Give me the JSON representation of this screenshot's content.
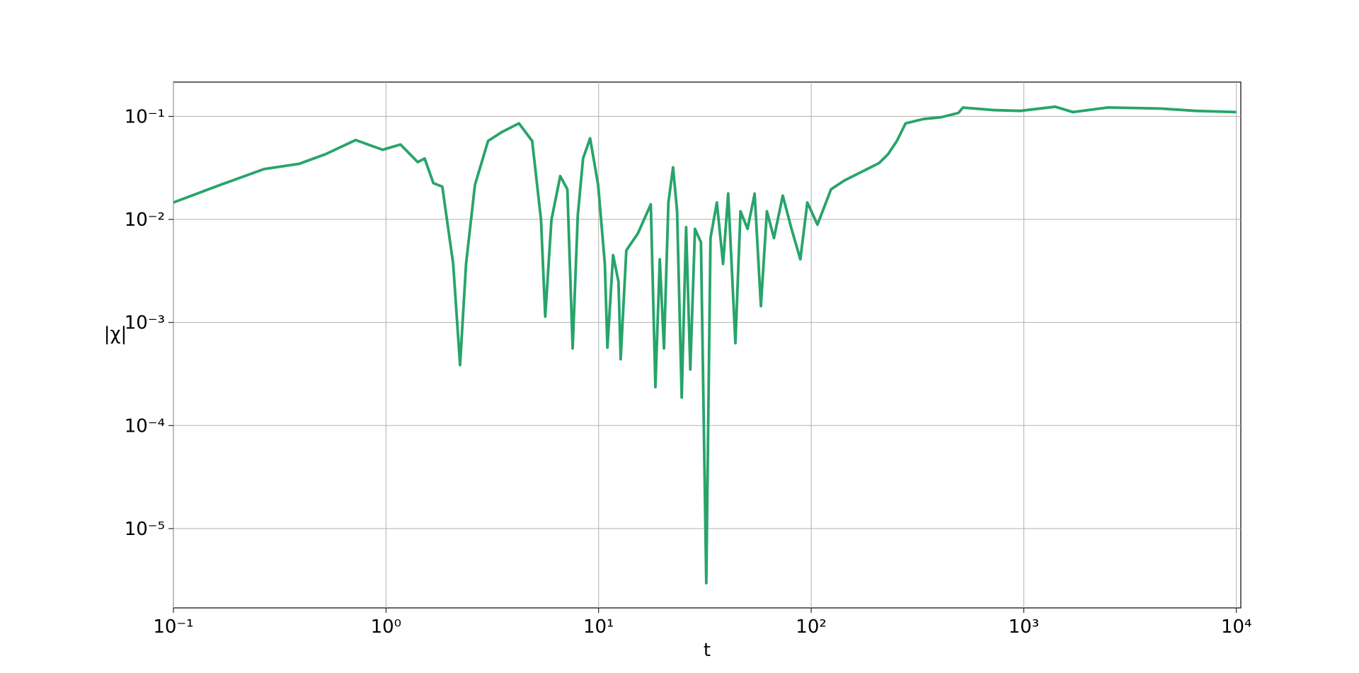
{
  "chart_data": {
    "type": "line",
    "x_label": "t",
    "y_label": "|χ|",
    "xscale": "log",
    "yscale": "log",
    "grid": true,
    "xlim": [
      0.1,
      10490
    ],
    "ylim": [
      1.7e-06,
      0.215
    ],
    "xticks": [
      {
        "value": 0.1,
        "label": "10⁻¹"
      },
      {
        "value": 1,
        "label": "10⁰"
      },
      {
        "value": 10,
        "label": "10¹"
      },
      {
        "value": 100,
        "label": "10²"
      },
      {
        "value": 1000,
        "label": "10³"
      },
      {
        "value": 10000,
        "label": "10⁴"
      }
    ],
    "yticks": [
      {
        "value": 1e-05,
        "label": "10⁻⁵"
      },
      {
        "value": 0.0001,
        "label": "10⁻⁴"
      },
      {
        "value": 0.001,
        "label": "10⁻³"
      },
      {
        "value": 0.01,
        "label": "10⁻²"
      },
      {
        "value": 0.1,
        "label": "10⁻¹"
      }
    ],
    "series": [
      {
        "color": "#28a46b",
        "x": [
          0.1,
          0.166,
          0.267,
          0.39,
          0.52,
          0.72,
          0.964,
          1.17,
          1.41,
          1.52,
          1.67,
          1.84,
          2.07,
          2.23,
          2.38,
          2.62,
          3.02,
          3.49,
          4.22,
          4.87,
          5.36,
          5.61,
          6.0,
          6.6,
          7.13,
          7.55,
          7.98,
          8.45,
          9.12,
          9.95,
          10.7,
          11.0,
          11.7,
          12.4,
          12.7,
          13.5,
          15.3,
          17.6,
          18.5,
          19.4,
          20.3,
          21.3,
          22.4,
          23.4,
          24.6,
          25.8,
          27.0,
          28.4,
          30.3,
          32.1,
          33.6,
          36.0,
          38.5,
          40.7,
          44.0,
          46.5,
          50.2,
          54.2,
          58.0,
          61.9,
          66.8,
          73.5,
          80.8,
          88.9,
          95.9,
          107,
          124,
          143,
          173,
          209,
          230,
          253,
          278,
          337,
          408,
          493,
          517,
          722,
          961,
          1406,
          1702,
          2489,
          4406,
          6460,
          10000
        ],
        "values": [
          0.0146,
          0.0216,
          0.0308,
          0.0346,
          0.043,
          0.0589,
          0.0474,
          0.0533,
          0.036,
          0.039,
          0.0225,
          0.0208,
          0.0037,
          0.000386,
          0.0037,
          0.0216,
          0.0577,
          0.07,
          0.0855,
          0.0577,
          0.0099,
          0.00114,
          0.0099,
          0.0263,
          0.0196,
          0.00056,
          0.0109,
          0.039,
          0.0612,
          0.0216,
          0.0037,
          0.00057,
          0.0045,
          0.0025,
          0.00044,
          0.005,
          0.0073,
          0.014,
          0.000236,
          0.0041,
          0.00056,
          0.0146,
          0.032,
          0.012,
          0.000187,
          0.0084,
          0.00035,
          0.0081,
          0.006,
          2.96e-06,
          0.0066,
          0.0146,
          0.0037,
          0.0178,
          0.00063,
          0.012,
          0.0081,
          0.0178,
          0.00144,
          0.012,
          0.0066,
          0.017,
          0.0081,
          0.0041,
          0.0146,
          0.0089,
          0.0196,
          0.0238,
          0.029,
          0.0353,
          0.043,
          0.0577,
          0.0855,
          0.0942,
          0.098,
          0.108,
          0.1217,
          0.115,
          0.113,
          0.124,
          0.11,
          0.122,
          0.119,
          0.113,
          0.11
        ]
      }
    ]
  }
}
